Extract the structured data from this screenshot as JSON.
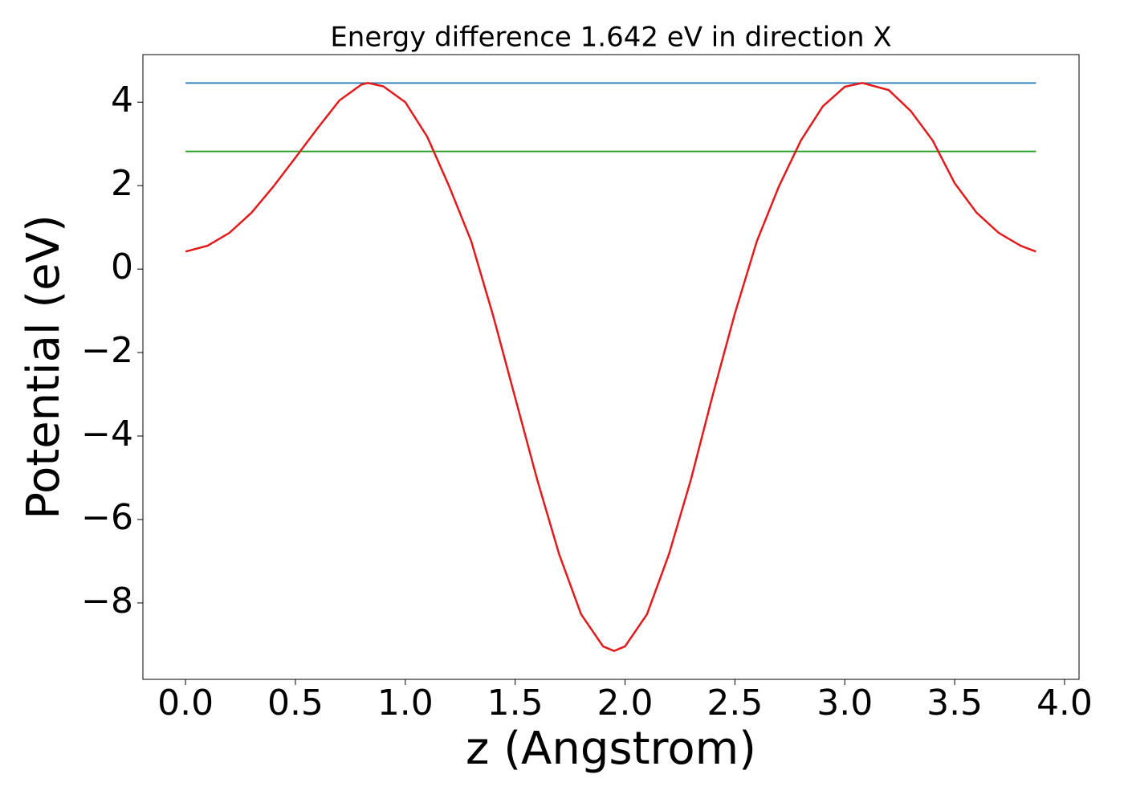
{
  "chart_data": {
    "type": "line",
    "title": "Energy difference 1.642 eV in direction X",
    "x_label": "z (Angstrom)",
    "y_label": "Potential (eV)",
    "xlim": [
      -0.194,
      4.066
    ],
    "ylim": [
      -9.83,
      5.14
    ],
    "xticks": [
      {
        "value": 0,
        "label": "0.0"
      },
      {
        "value": 0.5,
        "label": "0.5"
      },
      {
        "value": 1,
        "label": "1.0"
      },
      {
        "value": 1.5,
        "label": "1.5"
      },
      {
        "value": 2,
        "label": "2.0"
      },
      {
        "value": 2.5,
        "label": "2.5"
      },
      {
        "value": 3,
        "label": "3.0"
      },
      {
        "value": 3.5,
        "label": "3.5"
      },
      {
        "value": 4,
        "label": "4.0"
      }
    ],
    "yticks": [
      {
        "value": -8,
        "label": "−8"
      },
      {
        "value": -6,
        "label": "−6"
      },
      {
        "value": -4,
        "label": "−4"
      },
      {
        "value": -2,
        "label": "−2"
      },
      0,
      2,
      4
    ],
    "series": [
      {
        "color": "#1f77b4",
        "x": [
          0,
          3.87
        ],
        "values": [
          4.46,
          4.46
        ]
      },
      {
        "color": "#2ca02c",
        "x": [
          0,
          3.87
        ],
        "values": [
          2.82,
          2.82
        ]
      },
      {
        "color": "#e31a1c",
        "x": [
          0,
          0.1,
          0.2,
          0.3,
          0.4,
          0.5,
          0.6,
          0.7,
          0.8,
          0.83,
          0.9,
          1.0,
          1.1,
          1.2,
          1.3,
          1.4,
          1.5,
          1.6,
          1.7,
          1.8,
          1.9,
          1.95,
          2.0,
          2.1,
          2.2,
          2.3,
          2.4,
          2.5,
          2.6,
          2.7,
          2.8,
          2.9,
          3.0,
          3.08,
          3.2,
          3.3,
          3.4,
          3.5,
          3.6,
          3.7,
          3.8,
          3.87
        ],
        "values": [
          0.42,
          0.56,
          0.87,
          1.35,
          1.98,
          2.67,
          3.37,
          4.04,
          4.42,
          4.46,
          4.38,
          4.0,
          3.17,
          1.98,
          0.67,
          -1.12,
          -3.08,
          -5.04,
          -6.83,
          -8.27,
          -9.04,
          -9.15,
          -9.04,
          -8.27,
          -6.83,
          -5.04,
          -3.0,
          -1.06,
          0.67,
          1.98,
          3.08,
          3.9,
          4.37,
          4.46,
          4.29,
          3.79,
          3.08,
          2.06,
          1.35,
          0.87,
          0.56,
          0.42
        ]
      }
    ]
  }
}
